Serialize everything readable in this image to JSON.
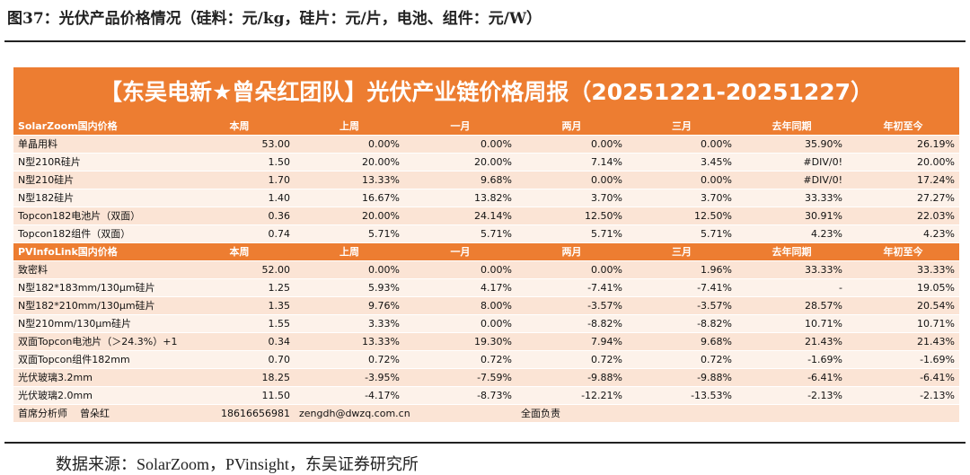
{
  "caption": "图37：光伏产品价格情况（硅料：元/kg，硅片：元/片，电池、组件：元/W）",
  "table": {
    "title": "【东吴电新★曾朵红团队】光伏产业链价格周报（20251221-20251227）",
    "sections": [
      {
        "header": [
          "SolarZoom国内价格",
          "本周",
          "上周",
          "一月",
          "两月",
          "三月",
          "去年同期",
          "年初至今"
        ],
        "rows": [
          [
            "单晶用料",
            "53.00",
            "0.00%",
            "0.00%",
            "0.00%",
            "0.00%",
            "35.90%",
            "26.19%"
          ],
          [
            "N型210R硅片",
            "1.50",
            "20.00%",
            "20.00%",
            "7.14%",
            "3.45%",
            "#DIV/0!",
            "20.00%"
          ],
          [
            "N型210硅片",
            "1.70",
            "13.33%",
            "9.68%",
            "0.00%",
            "0.00%",
            "#DIV/0!",
            "17.24%"
          ],
          [
            "N型182硅片",
            "1.40",
            "16.67%",
            "13.82%",
            "3.70%",
            "3.70%",
            "33.33%",
            "27.27%"
          ],
          [
            "Topcon182电池片（双面）",
            "0.36",
            "20.00%",
            "24.14%",
            "12.50%",
            "12.50%",
            "30.91%",
            "22.03%"
          ],
          [
            "Topcon182组件（双面）",
            "0.74",
            "5.71%",
            "5.71%",
            "5.71%",
            "5.71%",
            "4.23%",
            "4.23%"
          ]
        ]
      },
      {
        "header": [
          "PVInfoLink国内价格",
          "本周",
          "上周",
          "一月",
          "两月",
          "三月",
          "去年同期",
          "年初至今"
        ],
        "rows": [
          [
            "致密料",
            "52.00",
            "0.00%",
            "0.00%",
            "0.00%",
            "1.96%",
            "33.33%",
            "33.33%"
          ],
          [
            "N型182*183mm/130μm硅片",
            "1.25",
            "5.93%",
            "4.17%",
            "-7.41%",
            "-7.41%",
            "-",
            "19.05%"
          ],
          [
            "N型182*210mm/130μm硅片",
            "1.35",
            "9.76%",
            "8.00%",
            "-3.57%",
            "-3.57%",
            "28.57%",
            "20.54%"
          ],
          [
            "N型210mm/130μm硅片",
            "1.55",
            "3.33%",
            "0.00%",
            "-8.82%",
            "-8.82%",
            "10.71%",
            "10.71%"
          ],
          [
            "双面Topcon电池片（＞24.3%）+1",
            "0.34",
            "13.33%",
            "19.30%",
            "7.94%",
            "9.68%",
            "21.43%",
            "21.43%"
          ],
          [
            "双面Topcon组件182mm",
            "0.70",
            "0.72%",
            "0.72%",
            "0.72%",
            "0.72%",
            "-1.69%",
            "-1.69%"
          ],
          [
            "光伏玻璃3.2mm",
            "18.25",
            "-3.95%",
            "-7.59%",
            "-9.88%",
            "-9.88%",
            "-6.41%",
            "-6.41%"
          ],
          [
            "光伏玻璃2.0mm",
            "11.50",
            "-4.17%",
            "-8.73%",
            "-12.21%",
            "-13.53%",
            "-2.13%",
            "-2.13%"
          ]
        ]
      }
    ],
    "footer": [
      "首席分析师    曾朵红",
      "18616656981",
      "zengdh@dwzq.com.cn",
      "全面负责"
    ]
  },
  "source": "数据来源：SolarZoom，PVinsight，东吴证券研究所"
}
